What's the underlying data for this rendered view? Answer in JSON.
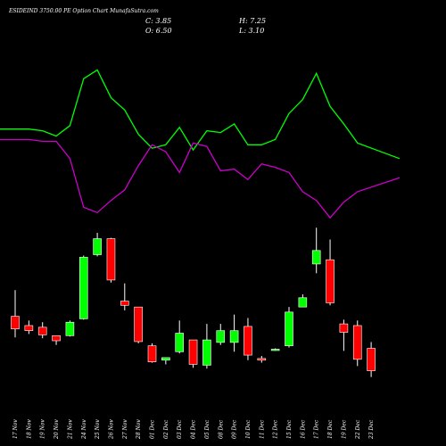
{
  "chart_data": {
    "type": "candlestick",
    "title": "ESIDEIND 3750.00  PE Option  Chart MunafaSutra.com",
    "ohlc_labels": {
      "close": "C: 3.85",
      "open": "O: 6.50",
      "high": "H: 7.25",
      "low": "L: 3.10"
    },
    "categories": [
      "17 Nov",
      "18 Nov",
      "19 Nov",
      "20 Nov",
      "21 Nov",
      "24 Nov",
      "25 Nov",
      "26 Nov",
      "27 Nov",
      "28 Nov",
      "01 Dec",
      "02 Dec",
      "03 Dec",
      "04 Dec",
      "05 Dec",
      "08 Dec",
      "09 Dec",
      "10 Dec",
      "11 Dec",
      "12 Dec",
      "15 Dec",
      "16 Dec",
      "17 Dec",
      "18 Dec",
      "19 Dec",
      "22 Dec",
      "23 Dec"
    ],
    "candle_ylim": [
      0,
      24
    ],
    "candles": [
      {
        "o": 10.3,
        "h": 13.4,
        "l": 7.8,
        "c": 8.8
      },
      {
        "o": 9.2,
        "h": 9.8,
        "l": 8.2,
        "c": 8.6
      },
      {
        "o": 9.0,
        "h": 9.6,
        "l": 7.7,
        "c": 8.1
      },
      {
        "o": 8.0,
        "h": 8.0,
        "l": 6.9,
        "c": 7.4
      },
      {
        "o": 8.0,
        "h": 9.8,
        "l": 7.9,
        "c": 9.6
      },
      {
        "o": 10.0,
        "h": 17.5,
        "l": 9.9,
        "c": 17.3
      },
      {
        "o": 17.6,
        "h": 20.2,
        "l": 17.4,
        "c": 19.5
      },
      {
        "o": 19.5,
        "h": 19.6,
        "l": 14.3,
        "c": 14.6
      },
      {
        "o": 12.1,
        "h": 14.2,
        "l": 11.0,
        "c": 11.6
      },
      {
        "o": 11.4,
        "h": 11.4,
        "l": 7.1,
        "c": 7.3
      },
      {
        "o": 6.8,
        "h": 7.1,
        "l": 4.8,
        "c": 4.9
      },
      {
        "o": 5.1,
        "h": 5.4,
        "l": 4.6,
        "c": 5.4
      },
      {
        "o": 6.1,
        "h": 9.8,
        "l": 5.9,
        "c": 8.3
      },
      {
        "o": 7.5,
        "h": 7.5,
        "l": 4.2,
        "c": 4.6
      },
      {
        "o": 4.5,
        "h": 9.4,
        "l": 4.1,
        "c": 7.5
      },
      {
        "o": 7.2,
        "h": 9.4,
        "l": 6.9,
        "c": 8.6
      },
      {
        "o": 7.2,
        "h": 10.5,
        "l": 6.1,
        "c": 8.6
      },
      {
        "o": 9.1,
        "h": 10.1,
        "l": 5.1,
        "c": 5.7
      },
      {
        "o": 5.3,
        "h": 5.6,
        "l": 4.8,
        "c": 5.1
      },
      {
        "o": 6.4,
        "h": 6.5,
        "l": 6.2,
        "c": 6.4
      },
      {
        "o": 6.8,
        "h": 11.4,
        "l": 6.6,
        "c": 10.8
      },
      {
        "o": 11.4,
        "h": 12.9,
        "l": 11.4,
        "c": 12.5
      },
      {
        "o": 16.5,
        "h": 20.8,
        "l": 15.4,
        "c": 18.1
      },
      {
        "o": 17.0,
        "h": 19.4,
        "l": 11.6,
        "c": 11.9
      },
      {
        "o": 9.4,
        "h": 9.9,
        "l": 6.2,
        "c": 8.4
      },
      {
        "o": 9.2,
        "h": 9.8,
        "l": 4.4,
        "c": 5.2
      },
      {
        "o": 6.5,
        "h": 7.25,
        "l": 3.1,
        "c": 3.85
      }
    ],
    "indicator_ylim": [
      0,
      100
    ],
    "series": [
      {
        "color": "#00ff00",
        "values": [
          54,
          54,
          53,
          50,
          56,
          83,
          88,
          72,
          65,
          51,
          43,
          45,
          55,
          42,
          53,
          52,
          57,
          45,
          45,
          48,
          63,
          71,
          86,
          67,
          57,
          46,
          37
        ]
      },
      {
        "color": "#cc00cc",
        "values": [
          48,
          48,
          47,
          47,
          37,
          9,
          6,
          13,
          19,
          33,
          45,
          41,
          29,
          46,
          44,
          30,
          31,
          25,
          34,
          32,
          29,
          18,
          13,
          3,
          12,
          18,
          26
        ]
      }
    ],
    "colors": {
      "up": "#00ff00",
      "down": "#ff0000",
      "wick": "#ffffff",
      "background": "#000000"
    },
    "grid": false
  }
}
